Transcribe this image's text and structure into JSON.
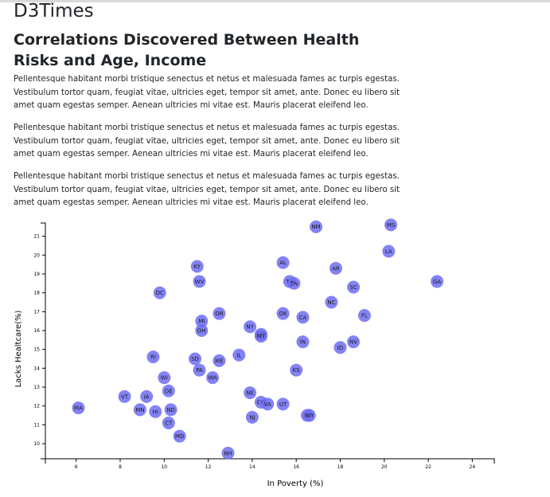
{
  "site_title": "D3Times",
  "article": {
    "headline": "Correlations Discovered Between Health Risks and Age, Income",
    "paragraphs": [
      "Pellentesque habitant morbi tristique senectus et netus et malesuada fames ac turpis egestas. Vestibulum tortor quam, feugiat vitae, ultricies eget, tempor sit amet, ante. Donec eu libero sit amet quam egestas semper. Aenean ultricies mi vitae est. Mauris placerat eleifend leo.",
      "Pellentesque habitant morbi tristique senectus et netus et malesuada fames ac turpis egestas. Vestibulum tortor quam, feugiat vitae, ultricies eget, tempor sit amet, ante. Donec eu libero sit amet quam egestas semper. Aenean ultricies mi vitae est. Mauris placerat eleifend leo.",
      "Pellentesque habitant morbi tristique senectus et netus et malesuada fames ac turpis egestas. Vestibulum tortor quam, feugiat vitae, ultricies eget, tempor sit amet, ante. Donec eu libero sit amet quam egestas semper. Aenean ultricies mi vitae est. Mauris placerat eleifend leo."
    ]
  },
  "chart_data": {
    "type": "scatter",
    "xlabel": "In Poverty (%)",
    "ylabel": "Lacks Healtcare(%)",
    "xlim": [
      4.6,
      25
    ],
    "ylim": [
      9.2,
      21.7
    ],
    "x_ticks": [
      6,
      8,
      10,
      12,
      14,
      16,
      18,
      20,
      22,
      24
    ],
    "y_ticks": [
      10,
      11,
      12,
      13,
      14,
      15,
      16,
      17,
      18,
      19,
      20,
      21
    ],
    "colors": {
      "point": "#6d6df2",
      "label": "#1a1a1a",
      "axis": "#000000"
    },
    "points": [
      {
        "label": "MS",
        "x": 20.3,
        "y": 21.6
      },
      {
        "label": "NM",
        "x": 16.9,
        "y": 21.5
      },
      {
        "label": "LA",
        "x": 20.2,
        "y": 20.2
      },
      {
        "label": "AL",
        "x": 15.4,
        "y": 19.6
      },
      {
        "label": "KY",
        "x": 11.5,
        "y": 19.4
      },
      {
        "label": "AR",
        "x": 17.8,
        "y": 19.3
      },
      {
        "label": "WV",
        "x": 11.6,
        "y": 18.6
      },
      {
        "label": "TX",
        "x": 15.7,
        "y": 18.6
      },
      {
        "label": "TN",
        "x": 15.9,
        "y": 18.5
      },
      {
        "label": "GA",
        "x": 22.4,
        "y": 18.6
      },
      {
        "label": "SC",
        "x": 18.6,
        "y": 18.3
      },
      {
        "label": "DC",
        "x": 9.8,
        "y": 18.0
      },
      {
        "label": "NC",
        "x": 17.6,
        "y": 17.5
      },
      {
        "label": "OR",
        "x": 12.5,
        "y": 16.9
      },
      {
        "label": "OK",
        "x": 15.4,
        "y": 16.9
      },
      {
        "label": "FL",
        "x": 19.1,
        "y": 16.8
      },
      {
        "label": "CA",
        "x": 16.3,
        "y": 16.7
      },
      {
        "label": "MI",
        "x": 11.7,
        "y": 16.5
      },
      {
        "label": "NY",
        "x": 13.9,
        "y": 16.2
      },
      {
        "label": "OH",
        "x": 11.7,
        "y": 16.0
      },
      {
        "label": "MO",
        "x": 14.4,
        "y": 15.8
      },
      {
        "label": "MT",
        "x": 14.4,
        "y": 15.7
      },
      {
        "label": "IN",
        "x": 16.3,
        "y": 15.4
      },
      {
        "label": "NV",
        "x": 18.6,
        "y": 15.4
      },
      {
        "label": "ID",
        "x": 18.0,
        "y": 15.1
      },
      {
        "label": "IL",
        "x": 13.4,
        "y": 14.7
      },
      {
        "label": "RI",
        "x": 9.5,
        "y": 14.6
      },
      {
        "label": "SD",
        "x": 11.4,
        "y": 14.5
      },
      {
        "label": "ME",
        "x": 12.5,
        "y": 14.4
      },
      {
        "label": "KS",
        "x": 16.0,
        "y": 13.9
      },
      {
        "label": "PA",
        "x": 11.6,
        "y": 13.9
      },
      {
        "label": "WA",
        "x": 12.2,
        "y": 13.5
      },
      {
        "label": "WI",
        "x": 10.0,
        "y": 13.5
      },
      {
        "label": "DE",
        "x": 10.2,
        "y": 12.8
      },
      {
        "label": "NE",
        "x": 13.9,
        "y": 12.7
      },
      {
        "label": "VT",
        "x": 8.2,
        "y": 12.5
      },
      {
        "label": "IA",
        "x": 9.2,
        "y": 12.5
      },
      {
        "label": "CO",
        "x": 14.4,
        "y": 12.2
      },
      {
        "label": "VA",
        "x": 14.7,
        "y": 12.1
      },
      {
        "label": "UT",
        "x": 15.4,
        "y": 12.1
      },
      {
        "label": "MA",
        "x": 6.1,
        "y": 11.9
      },
      {
        "label": "MN",
        "x": 8.9,
        "y": 11.8
      },
      {
        "label": "HI",
        "x": 9.6,
        "y": 11.7
      },
      {
        "label": "ND",
        "x": 10.3,
        "y": 11.8
      },
      {
        "label": "AK",
        "x": 16.5,
        "y": 11.5
      },
      {
        "label": "WY",
        "x": 16.6,
        "y": 11.5
      },
      {
        "label": "NJ",
        "x": 14.0,
        "y": 11.4
      },
      {
        "label": "CT",
        "x": 10.2,
        "y": 11.1
      },
      {
        "label": "MD",
        "x": 10.7,
        "y": 10.4
      },
      {
        "label": "NH",
        "x": 12.9,
        "y": 9.5
      }
    ]
  }
}
